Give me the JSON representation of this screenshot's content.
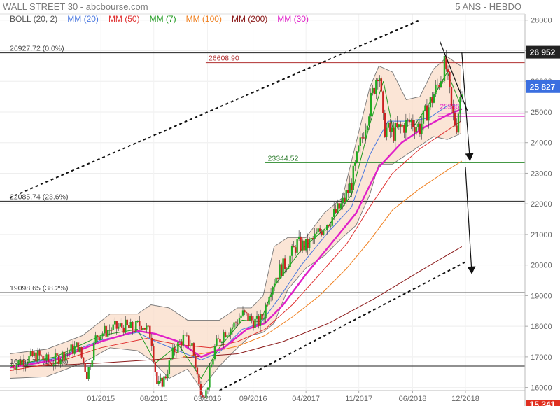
{
  "header": {
    "title": "WALL STREET 30 - abcbourse.com",
    "period": "5 ANS - HEBDO"
  },
  "legend": [
    {
      "label": "BOLL (20, 2)",
      "color": "#555555"
    },
    {
      "label": "MM (20)",
      "color": "#4a78e0"
    },
    {
      "label": "MM (50)",
      "color": "#e03030"
    },
    {
      "label": "MM (7)",
      "color": "#1f9a1f"
    },
    {
      "label": "MM (100)",
      "color": "#f08020"
    },
    {
      "label": "MM (200)",
      "color": "#8b1a1a"
    },
    {
      "label": "MM (30)",
      "color": "#e020c8"
    }
  ],
  "chart_data": {
    "type": "candlestick",
    "ylim": [
      15900,
      28200
    ],
    "y_ticks": [
      16000,
      17000,
      18000,
      19000,
      20000,
      21000,
      22000,
      23000,
      24000,
      25000,
      26000,
      27000,
      28000
    ],
    "y_tick_labels": [
      "16000",
      "17000",
      "18000",
      "19000",
      "20000",
      "21000",
      "22000",
      "23000",
      "24000",
      "25000",
      "26000",
      "27000",
      "28000"
    ],
    "x_ticks": [
      2015.0,
      2015.58,
      2016.17,
      2016.67,
      2017.25,
      2017.83,
      2018.42,
      2019.0
    ],
    "x_tick_labels": [
      "01/2015",
      "08/2015",
      "03/2016",
      "09/2016",
      "04/2017",
      "11/2017",
      "06/2018",
      "12/2018"
    ],
    "xlim": [
      2014.0,
      2019.0
    ],
    "price_path": [
      [
        2014.0,
        16700
      ],
      [
        2014.15,
        16900
      ],
      [
        2014.3,
        17050
      ],
      [
        2014.45,
        16800
      ],
      [
        2014.6,
        17100
      ],
      [
        2014.75,
        17350
      ],
      [
        2014.85,
        16400
      ],
      [
        2014.95,
        17700
      ],
      [
        2015.1,
        17900
      ],
      [
        2015.25,
        18000
      ],
      [
        2015.35,
        17900
      ],
      [
        2015.45,
        18100
      ],
      [
        2015.55,
        17700
      ],
      [
        2015.62,
        16000
      ],
      [
        2015.7,
        16300
      ],
      [
        2015.8,
        17200
      ],
      [
        2015.9,
        17600
      ],
      [
        2016.0,
        17400
      ],
      [
        2016.08,
        16000
      ],
      [
        2016.15,
        15800
      ],
      [
        2016.25,
        17300
      ],
      [
        2016.35,
        17800
      ],
      [
        2016.45,
        18000
      ],
      [
        2016.55,
        18400
      ],
      [
        2016.65,
        18200
      ],
      [
        2016.72,
        18100
      ],
      [
        2016.78,
        18300
      ],
      [
        2016.85,
        19200
      ],
      [
        2016.95,
        19800
      ],
      [
        2017.05,
        20100
      ],
      [
        2017.15,
        20700
      ],
      [
        2017.25,
        20600
      ],
      [
        2017.35,
        20900
      ],
      [
        2017.45,
        21300
      ],
      [
        2017.55,
        21600
      ],
      [
        2017.65,
        22000
      ],
      [
        2017.75,
        22700
      ],
      [
        2017.85,
        24000
      ],
      [
        2017.95,
        25200
      ],
      [
        2018.05,
        26500
      ],
      [
        2018.1,
        24500
      ],
      [
        2018.2,
        24300
      ],
      [
        2018.3,
        24500
      ],
      [
        2018.4,
        24700
      ],
      [
        2018.5,
        24500
      ],
      [
        2018.6,
        25200
      ],
      [
        2018.7,
        25900
      ],
      [
        2018.78,
        26600
      ],
      [
        2018.85,
        25000
      ],
      [
        2018.9,
        24500
      ],
      [
        2018.96,
        25900
      ]
    ],
    "bollinger": {
      "upper": [
        [
          2014.0,
          17100
        ],
        [
          2014.4,
          17250
        ],
        [
          2014.8,
          17700
        ],
        [
          2015.1,
          18400
        ],
        [
          2015.4,
          18400
        ],
        [
          2015.55,
          18700
        ],
        [
          2015.75,
          18600
        ],
        [
          2015.95,
          18200
        ],
        [
          2016.1,
          18200
        ],
        [
          2016.3,
          18200
        ],
        [
          2016.5,
          18600
        ],
        [
          2016.65,
          18600
        ],
        [
          2016.78,
          19000
        ],
        [
          2016.9,
          20600
        ],
        [
          2017.05,
          20900
        ],
        [
          2017.25,
          20900
        ],
        [
          2017.45,
          21700
        ],
        [
          2017.65,
          22200
        ],
        [
          2017.8,
          24000
        ],
        [
          2017.95,
          25800
        ],
        [
          2018.05,
          26500
        ],
        [
          2018.2,
          26300
        ],
        [
          2018.35,
          25400
        ],
        [
          2018.5,
          25500
        ],
        [
          2018.65,
          26400
        ],
        [
          2018.8,
          26800
        ],
        [
          2018.95,
          26500
        ]
      ],
      "lower": [
        [
          2014.0,
          16300
        ],
        [
          2014.4,
          16350
        ],
        [
          2014.8,
          16800
        ],
        [
          2015.1,
          17300
        ],
        [
          2015.4,
          17200
        ],
        [
          2015.55,
          16900
        ],
        [
          2015.75,
          16300
        ],
        [
          2015.95,
          16600
        ],
        [
          2016.1,
          15950
        ],
        [
          2016.3,
          16700
        ],
        [
          2016.5,
          17300
        ],
        [
          2016.65,
          17700
        ],
        [
          2016.78,
          17800
        ],
        [
          2016.9,
          18100
        ],
        [
          2017.05,
          19200
        ],
        [
          2017.25,
          19900
        ],
        [
          2017.45,
          20300
        ],
        [
          2017.65,
          20900
        ],
        [
          2017.8,
          21300
        ],
        [
          2017.95,
          22300
        ],
        [
          2018.05,
          23300
        ],
        [
          2018.2,
          23300
        ],
        [
          2018.35,
          23600
        ],
        [
          2018.5,
          23900
        ],
        [
          2018.65,
          24200
        ],
        [
          2018.8,
          24100
        ],
        [
          2018.95,
          24300
        ]
      ]
    },
    "moving_averages": [
      {
        "name": "MM (20)",
        "color": "#4a78e0",
        "points": [
          [
            2014.0,
            16700
          ],
          [
            2014.5,
            16950
          ],
          [
            2015.0,
            17550
          ],
          [
            2015.4,
            17800
          ],
          [
            2015.6,
            17500
          ],
          [
            2015.85,
            17200
          ],
          [
            2016.1,
            16900
          ],
          [
            2016.3,
            17150
          ],
          [
            2016.55,
            17900
          ],
          [
            2016.75,
            18100
          ],
          [
            2016.95,
            18900
          ],
          [
            2017.2,
            20000
          ],
          [
            2017.5,
            21100
          ],
          [
            2017.75,
            21900
          ],
          [
            2017.95,
            23600
          ],
          [
            2018.15,
            24700
          ],
          [
            2018.35,
            24700
          ],
          [
            2018.6,
            24800
          ],
          [
            2018.8,
            25200
          ],
          [
            2018.95,
            25200
          ]
        ]
      },
      {
        "name": "MM (50)",
        "color": "#e03030",
        "points": [
          [
            2014.0,
            16550
          ],
          [
            2014.5,
            16800
          ],
          [
            2015.0,
            17300
          ],
          [
            2015.5,
            17600
          ],
          [
            2015.85,
            17400
          ],
          [
            2016.2,
            17300
          ],
          [
            2016.5,
            17500
          ],
          [
            2016.8,
            17900
          ],
          [
            2017.1,
            18700
          ],
          [
            2017.4,
            19700
          ],
          [
            2017.7,
            20700
          ],
          [
            2017.95,
            21900
          ],
          [
            2018.2,
            23000
          ],
          [
            2018.5,
            23800
          ],
          [
            2018.8,
            24400
          ],
          [
            2018.95,
            24700
          ]
        ]
      },
      {
        "name": "MM (7)",
        "color": "#1f9a1f",
        "points": [
          [
            2014.0,
            16700
          ],
          [
            2014.5,
            17000
          ],
          [
            2015.0,
            17700
          ],
          [
            2015.4,
            17900
          ],
          [
            2015.6,
            16800
          ],
          [
            2015.85,
            17400
          ],
          [
            2016.1,
            16300
          ],
          [
            2016.3,
            17300
          ],
          [
            2016.55,
            18200
          ],
          [
            2016.75,
            18150
          ],
          [
            2016.9,
            19300
          ],
          [
            2017.2,
            20500
          ],
          [
            2017.5,
            21300
          ],
          [
            2017.75,
            22300
          ],
          [
            2017.95,
            24600
          ],
          [
            2018.1,
            26000
          ],
          [
            2018.2,
            24500
          ],
          [
            2018.45,
            24600
          ],
          [
            2018.65,
            25500
          ],
          [
            2018.8,
            26300
          ],
          [
            2018.95,
            25200
          ]
        ]
      },
      {
        "name": "MM (100)",
        "color": "#f08020",
        "points": [
          [
            2015.9,
            17000
          ],
          [
            2016.2,
            17150
          ],
          [
            2016.5,
            17350
          ],
          [
            2016.8,
            17700
          ],
          [
            2017.1,
            18300
          ],
          [
            2017.4,
            19000
          ],
          [
            2017.7,
            19900
          ],
          [
            2017.95,
            20800
          ],
          [
            2018.2,
            21800
          ],
          [
            2018.5,
            22500
          ],
          [
            2018.8,
            23100
          ],
          [
            2018.96,
            23400
          ]
        ]
      },
      {
        "name": "MM (200)",
        "color": "#8b1a1a",
        "points": [
          [
            2014.0,
            16650
          ],
          [
            2015.0,
            16800
          ],
          [
            2015.8,
            16950
          ],
          [
            2016.5,
            17100
          ],
          [
            2017.0,
            17500
          ],
          [
            2017.5,
            18100
          ],
          [
            2018.0,
            18900
          ],
          [
            2018.5,
            19800
          ],
          [
            2018.96,
            20600
          ]
        ]
      },
      {
        "name": "MM (30)",
        "color": "#e020c8",
        "points": [
          [
            2014.0,
            16650
          ],
          [
            2014.5,
            16900
          ],
          [
            2015.0,
            17500
          ],
          [
            2015.4,
            17850
          ],
          [
            2015.6,
            17750
          ],
          [
            2015.85,
            17500
          ],
          [
            2016.1,
            17000
          ],
          [
            2016.35,
            17300
          ],
          [
            2016.6,
            17900
          ],
          [
            2016.8,
            18100
          ],
          [
            2017.0,
            18700
          ],
          [
            2017.25,
            19700
          ],
          [
            2017.5,
            20600
          ],
          [
            2017.8,
            21700
          ],
          [
            2018.05,
            23200
          ],
          [
            2018.3,
            24000
          ],
          [
            2018.55,
            24500
          ],
          [
            2018.8,
            24900
          ],
          [
            2018.96,
            25100
          ]
        ]
      }
    ],
    "fib_levels": [
      {
        "label": "26927.72",
        "pct": "(0.0%)",
        "value": 26927.72
      },
      {
        "label": "22085.74",
        "pct": "(23.6%)",
        "value": 22085.74
      },
      {
        "label": "19098.65",
        "pct": "(38.2%)",
        "value": 19098.65
      },
      {
        "label": "16699.70",
        "pct": "(50.0%)",
        "value": 16699.7
      }
    ],
    "resistance": {
      "label": "26608.90",
      "value": 26608.9,
      "x_start": 2016.15
    },
    "support": {
      "label": "23344.52",
      "value": 23344.52,
      "x_start": 2016.8
    },
    "pink_level_label": "25986",
    "pink_levels": [
      24960,
      24860
    ],
    "channel_upper": [
      [
        2014.0,
        22200
      ],
      [
        2018.5,
        28000
      ]
    ],
    "channel_lower": [
      [
        2016.3,
        15900
      ],
      [
        2019.0,
        20100
      ]
    ],
    "last_price_badge": {
      "label": "26 952",
      "value": 26952,
      "color": "#222222"
    },
    "current_badge": {
      "label": "25 827",
      "value": 25827,
      "color": "#3b6fe0"
    },
    "bottom_badge": {
      "label": "15 341",
      "color": "#e03020"
    }
  }
}
